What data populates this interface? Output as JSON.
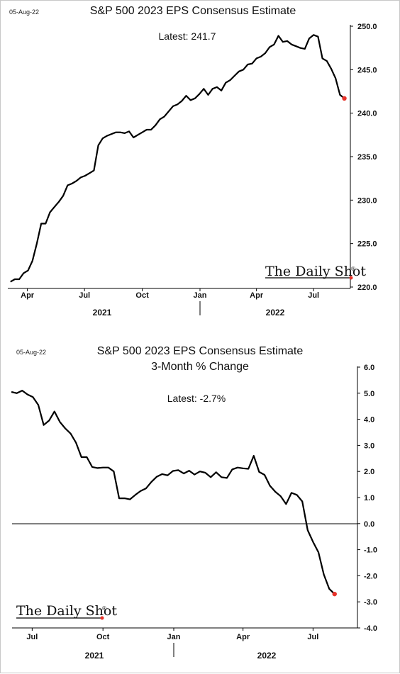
{
  "colors": {
    "line": "#000000",
    "endpoint": "#e8332a",
    "axis": "#000000",
    "frame": "#c8c8c8"
  },
  "brand": "The Daily Shot",
  "brand_mark": "®",
  "chart_data": [
    {
      "type": "line",
      "datestamp": "05-Aug-22",
      "title": "S&P 500 2023 EPS Consensus Estimate",
      "latest_text": "Latest:  241.7",
      "ylim": [
        220,
        250
      ],
      "y_ticks": [
        "250.0",
        "245.0",
        "240.0",
        "235.0",
        "230.0",
        "225.0",
        "220.0"
      ],
      "x_ticks": [
        "Apr",
        "Jul",
        "Oct",
        "Jan",
        "Apr",
        "Jul"
      ],
      "year_labels": [
        "2021",
        "2022"
      ],
      "grid": false,
      "series": [
        {
          "values": [
            [
              "2021-03-05",
              220.6
            ],
            [
              "2021-03-12",
              220.9
            ],
            [
              "2021-03-19",
              220.9
            ],
            [
              "2021-03-26",
              221.6
            ],
            [
              "2021-04-02",
              221.9
            ],
            [
              "2021-04-09",
              223.0
            ],
            [
              "2021-04-16",
              225.0
            ],
            [
              "2021-04-23",
              227.3
            ],
            [
              "2021-04-30",
              227.3
            ],
            [
              "2021-05-07",
              228.6
            ],
            [
              "2021-05-14",
              229.2
            ],
            [
              "2021-05-21",
              229.8
            ],
            [
              "2021-05-28",
              230.5
            ],
            [
              "2021-06-04",
              231.7
            ],
            [
              "2021-06-11",
              231.9
            ],
            [
              "2021-06-18",
              232.2
            ],
            [
              "2021-06-25",
              232.6
            ],
            [
              "2021-07-02",
              232.8
            ],
            [
              "2021-07-09",
              233.1
            ],
            [
              "2021-07-16",
              233.4
            ],
            [
              "2021-07-23",
              236.3
            ],
            [
              "2021-07-30",
              237.1
            ],
            [
              "2021-08-06",
              237.4
            ],
            [
              "2021-08-13",
              237.6
            ],
            [
              "2021-08-20",
              237.8
            ],
            [
              "2021-08-27",
              237.8
            ],
            [
              "2021-09-03",
              237.7
            ],
            [
              "2021-09-10",
              237.9
            ],
            [
              "2021-09-17",
              237.2
            ],
            [
              "2021-09-24",
              237.5
            ],
            [
              "2021-10-01",
              237.8
            ],
            [
              "2021-10-08",
              238.1
            ],
            [
              "2021-10-15",
              238.1
            ],
            [
              "2021-10-22",
              238.6
            ],
            [
              "2021-10-29",
              239.3
            ],
            [
              "2021-11-05",
              239.6
            ],
            [
              "2021-11-12",
              240.2
            ],
            [
              "2021-11-19",
              240.8
            ],
            [
              "2021-11-26",
              241.0
            ],
            [
              "2021-12-03",
              241.4
            ],
            [
              "2021-12-10",
              242.0
            ],
            [
              "2021-12-17",
              241.5
            ],
            [
              "2021-12-24",
              241.7
            ],
            [
              "2021-12-31",
              242.2
            ],
            [
              "2022-01-07",
              242.8
            ],
            [
              "2022-01-14",
              242.1
            ],
            [
              "2022-01-21",
              242.8
            ],
            [
              "2022-01-28",
              243.0
            ],
            [
              "2022-02-04",
              242.6
            ],
            [
              "2022-02-11",
              243.5
            ],
            [
              "2022-02-18",
              243.8
            ],
            [
              "2022-02-25",
              244.3
            ],
            [
              "2022-03-04",
              244.8
            ],
            [
              "2022-03-11",
              245.0
            ],
            [
              "2022-03-18",
              245.6
            ],
            [
              "2022-03-25",
              245.7
            ],
            [
              "2022-04-01",
              246.3
            ],
            [
              "2022-04-08",
              246.5
            ],
            [
              "2022-04-15",
              246.9
            ],
            [
              "2022-04-22",
              247.6
            ],
            [
              "2022-04-29",
              247.9
            ],
            [
              "2022-05-06",
              248.9
            ],
            [
              "2022-05-13",
              248.2
            ],
            [
              "2022-05-20",
              248.3
            ],
            [
              "2022-05-27",
              247.9
            ],
            [
              "2022-06-03",
              247.7
            ],
            [
              "2022-06-10",
              247.5
            ],
            [
              "2022-06-17",
              247.4
            ],
            [
              "2022-06-24",
              248.6
            ],
            [
              "2022-07-01",
              249.0
            ],
            [
              "2022-07-08",
              248.8
            ],
            [
              "2022-07-15",
              246.3
            ],
            [
              "2022-07-22",
              246.0
            ],
            [
              "2022-07-29",
              245.1
            ],
            [
              "2022-08-05",
              244.0
            ],
            [
              "2022-08-12",
              242.1
            ],
            [
              "2022-08-19",
              241.7
            ]
          ]
        }
      ]
    },
    {
      "type": "line",
      "datestamp": "05-Aug-22",
      "title": "S&P 500 2023 EPS Consensus Estimate",
      "subtitle": "3-Month % Change",
      "latest_text": "Latest:  -2.7%",
      "ylim": [
        -4,
        6
      ],
      "y_ticks": [
        "6.0",
        "5.0",
        "4.0",
        "3.0",
        "2.0",
        "1.0",
        "0.0",
        "-1.0",
        "-2.0",
        "-3.0",
        "-4.0"
      ],
      "x_ticks": [
        "Jul",
        "Oct",
        "Jan",
        "Apr",
        "Jul"
      ],
      "year_labels": [
        "2021",
        "2022"
      ],
      "zero_line": true,
      "grid": false,
      "series": [
        {
          "values": [
            [
              "2021-06-04",
              5.05
            ],
            [
              "2021-06-11",
              5.0
            ],
            [
              "2021-06-18",
              5.1
            ],
            [
              "2021-06-25",
              4.95
            ],
            [
              "2021-07-02",
              4.85
            ],
            [
              "2021-07-09",
              4.55
            ],
            [
              "2021-07-16",
              3.78
            ],
            [
              "2021-07-23",
              3.95
            ],
            [
              "2021-07-30",
              4.3
            ],
            [
              "2021-08-06",
              3.9
            ],
            [
              "2021-08-13",
              3.65
            ],
            [
              "2021-08-20",
              3.45
            ],
            [
              "2021-08-27",
              3.1
            ],
            [
              "2021-09-03",
              2.55
            ],
            [
              "2021-09-10",
              2.55
            ],
            [
              "2021-09-17",
              2.17
            ],
            [
              "2021-09-24",
              2.13
            ],
            [
              "2021-10-01",
              2.15
            ],
            [
              "2021-10-08",
              2.15
            ],
            [
              "2021-10-15",
              2.0
            ],
            [
              "2021-10-22",
              0.97
            ],
            [
              "2021-10-29",
              0.97
            ],
            [
              "2021-11-05",
              0.93
            ],
            [
              "2021-11-12",
              1.1
            ],
            [
              "2021-11-19",
              1.25
            ],
            [
              "2021-11-26",
              1.35
            ],
            [
              "2021-12-03",
              1.6
            ],
            [
              "2021-12-10",
              1.8
            ],
            [
              "2021-12-17",
              1.9
            ],
            [
              "2021-12-24",
              1.85
            ],
            [
              "2021-12-31",
              2.02
            ],
            [
              "2022-01-07",
              2.05
            ],
            [
              "2022-01-14",
              1.92
            ],
            [
              "2022-01-21",
              2.03
            ],
            [
              "2022-01-28",
              1.88
            ],
            [
              "2022-02-04",
              2.0
            ],
            [
              "2022-02-11",
              1.95
            ],
            [
              "2022-02-18",
              1.78
            ],
            [
              "2022-02-25",
              1.97
            ],
            [
              "2022-03-04",
              1.78
            ],
            [
              "2022-03-11",
              1.75
            ],
            [
              "2022-03-18",
              2.08
            ],
            [
              "2022-03-25",
              2.15
            ],
            [
              "2022-04-01",
              2.12
            ],
            [
              "2022-04-08",
              2.1
            ],
            [
              "2022-04-15",
              2.6
            ],
            [
              "2022-04-22",
              1.98
            ],
            [
              "2022-04-29",
              1.87
            ],
            [
              "2022-05-06",
              1.45
            ],
            [
              "2022-05-13",
              1.22
            ],
            [
              "2022-05-20",
              1.05
            ],
            [
              "2022-05-27",
              0.75
            ],
            [
              "2022-06-03",
              1.18
            ],
            [
              "2022-06-10",
              1.1
            ],
            [
              "2022-06-17",
              0.85
            ],
            [
              "2022-06-24",
              -0.25
            ],
            [
              "2022-07-01",
              -0.7
            ],
            [
              "2022-07-08",
              -1.1
            ],
            [
              "2022-07-15",
              -1.95
            ],
            [
              "2022-07-22",
              -2.5
            ],
            [
              "2022-07-29",
              -2.7
            ]
          ]
        }
      ]
    }
  ]
}
